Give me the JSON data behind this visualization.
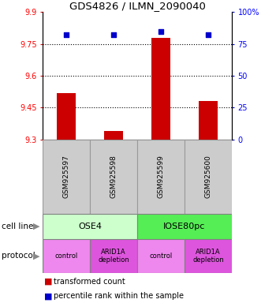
{
  "title": "GDS4826 / ILMN_2090040",
  "samples": [
    "GSM925597",
    "GSM925598",
    "GSM925599",
    "GSM925600"
  ],
  "bar_values": [
    9.52,
    9.34,
    9.78,
    9.48
  ],
  "bar_bottom": 9.3,
  "percentile_values": [
    82,
    82,
    85,
    82
  ],
  "ylim_left": [
    9.3,
    9.9
  ],
  "ylim_right": [
    0,
    100
  ],
  "yticks_left": [
    9.3,
    9.45,
    9.6,
    9.75,
    9.9
  ],
  "ytick_labels_left": [
    "9.3",
    "9.45",
    "9.6",
    "9.75",
    "9.9"
  ],
  "yticks_right": [
    0,
    25,
    50,
    75,
    100
  ],
  "ytick_labels_right": [
    "0",
    "25",
    "50",
    "75",
    "100%"
  ],
  "bar_color": "#cc0000",
  "dot_color": "#0000cc",
  "cell_line_labels": [
    "OSE4",
    "IOSE80pc"
  ],
  "cell_line_spans": [
    [
      0,
      2
    ],
    [
      2,
      4
    ]
  ],
  "cell_line_colors": [
    "#ccffcc",
    "#55ee55"
  ],
  "protocol_labels": [
    "control",
    "ARID1A\ndepletion",
    "control",
    "ARID1A\ndepletion"
  ],
  "protocol_colors": [
    "#ee88ee",
    "#dd55dd",
    "#ee88ee",
    "#dd55dd"
  ],
  "legend_bar_label": "transformed count",
  "legend_dot_label": "percentile rank within the sample",
  "gridline_y": [
    9.45,
    9.6,
    9.75
  ],
  "sample_box_color": "#cccccc",
  "sample_box_edge": "#999999"
}
